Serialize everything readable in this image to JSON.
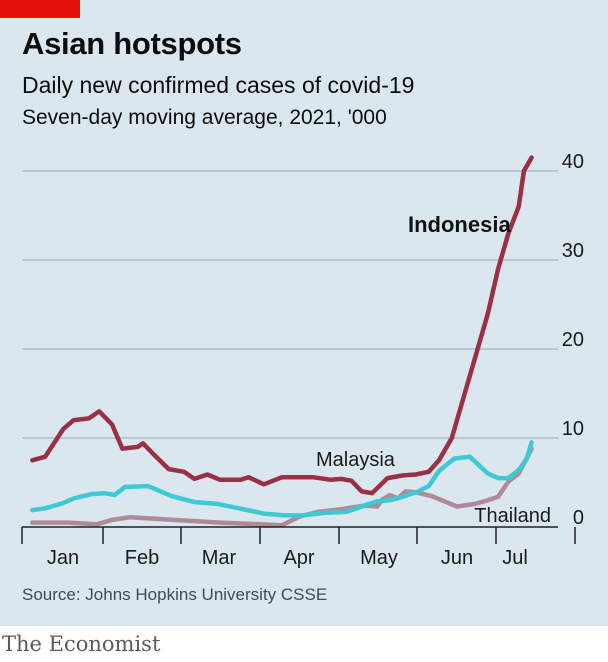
{
  "header": {
    "title": "Asian hotspots",
    "subtitle": "Daily new confirmed cases of covid-19",
    "note": "Seven-day moving average, 2021, '000"
  },
  "source": "Source: Johns Hopkins University CSSE",
  "footer": "The Economist",
  "colors": {
    "background": "#dbe7ee",
    "brand_red": "#e3120b",
    "indonesia": "#9a2f45",
    "malaysia": "#3ec9d4",
    "thailand": "#b08b97",
    "grid": "#a9b6bf",
    "axis": "#202020"
  },
  "chart_data": {
    "type": "line",
    "title": "Daily new confirmed cases of covid-19",
    "xlabel": "",
    "ylabel": "",
    "ylim": [
      0,
      40
    ],
    "xlim": [
      "2021-01-01",
      "2021-07-31"
    ],
    "y_ticks": [
      0,
      10,
      20,
      30,
      40
    ],
    "y_tick_labels": [
      "0",
      "10",
      "20",
      "30",
      "40"
    ],
    "x_ticks": [
      "Jan",
      "Feb",
      "Mar",
      "Apr",
      "May",
      "Jun",
      "Jul"
    ],
    "grid": true,
    "series": [
      {
        "name": "Indonesia",
        "color": "#9a2f45",
        "x": [
          "2021-01-01",
          "2021-01-06",
          "2021-01-13",
          "2021-01-17",
          "2021-01-23",
          "2021-01-27",
          "2021-02-01",
          "2021-02-05",
          "2021-02-11",
          "2021-02-13",
          "2021-02-17",
          "2021-02-23",
          "2021-03-01",
          "2021-03-05",
          "2021-03-10",
          "2021-03-15",
          "2021-03-23",
          "2021-03-26",
          "2021-04-01",
          "2021-04-08",
          "2021-04-20",
          "2021-04-27",
          "2021-05-01",
          "2021-05-05",
          "2021-05-09",
          "2021-05-13",
          "2021-05-19",
          "2021-05-25",
          "2021-05-30",
          "2021-06-04",
          "2021-06-08",
          "2021-06-13",
          "2021-06-18",
          "2021-06-23",
          "2021-06-27",
          "2021-07-01",
          "2021-07-05",
          "2021-07-09",
          "2021-07-11",
          "2021-07-14"
        ],
        "y": [
          7.5,
          7.9,
          11.0,
          12.0,
          12.2,
          13.0,
          11.5,
          8.8,
          9.0,
          9.4,
          8.2,
          6.5,
          6.2,
          5.4,
          5.9,
          5.3,
          5.3,
          5.6,
          4.8,
          5.6,
          5.6,
          5.3,
          5.4,
          5.2,
          4.0,
          3.8,
          5.5,
          5.8,
          5.9,
          6.2,
          7.5,
          10.0,
          15.0,
          20.0,
          24.0,
          29.0,
          33.0,
          36.0,
          40.0,
          41.5
        ]
      },
      {
        "name": "Malaysia",
        "color": "#3ec9d4",
        "x": [
          "2021-01-01",
          "2021-01-06",
          "2021-01-13",
          "2021-01-17",
          "2021-01-24",
          "2021-01-29",
          "2021-02-02",
          "2021-02-06",
          "2021-02-15",
          "2021-02-24",
          "2021-03-05",
          "2021-03-14",
          "2021-03-24",
          "2021-04-01",
          "2021-04-09",
          "2021-04-16",
          "2021-04-25",
          "2021-05-03",
          "2021-05-09",
          "2021-05-15",
          "2021-05-20",
          "2021-05-25",
          "2021-05-31",
          "2021-06-04",
          "2021-06-08",
          "2021-06-14",
          "2021-06-20",
          "2021-06-27",
          "2021-07-01",
          "2021-07-05",
          "2021-07-09",
          "2021-07-12",
          "2021-07-14"
        ],
        "y": [
          1.9,
          2.1,
          2.7,
          3.2,
          3.7,
          3.8,
          3.6,
          4.5,
          4.6,
          3.5,
          2.8,
          2.6,
          2.0,
          1.5,
          1.3,
          1.3,
          1.6,
          1.7,
          2.3,
          2.9,
          3.0,
          3.4,
          4.0,
          4.6,
          6.3,
          7.7,
          7.9,
          6.0,
          5.5,
          5.5,
          6.4,
          7.6,
          9.5
        ]
      },
      {
        "name": "Thailand",
        "color": "#b08b97",
        "x": [
          "2021-01-01",
          "2021-01-15",
          "2021-01-26",
          "2021-02-01",
          "2021-02-08",
          "2021-03-15",
          "2021-04-08",
          "2021-04-15",
          "2021-04-22",
          "2021-05-01",
          "2021-05-10",
          "2021-05-15",
          "2021-05-17",
          "2021-05-20",
          "2021-05-23",
          "2021-05-26",
          "2021-05-30",
          "2021-06-05",
          "2021-06-15",
          "2021-06-22",
          "2021-06-27",
          "2021-07-01",
          "2021-07-05",
          "2021-07-09",
          "2021-07-14"
        ],
        "y": [
          0.5,
          0.5,
          0.3,
          0.8,
          1.1,
          0.5,
          0.2,
          1.2,
          1.7,
          2.0,
          2.4,
          2.3,
          3.1,
          3.6,
          3.2,
          4.0,
          3.9,
          3.5,
          2.3,
          2.6,
          3.0,
          3.4,
          5.1,
          6.0,
          8.8
        ]
      }
    ],
    "annotations": [
      "Indonesia",
      "Malaysia",
      "Thailand"
    ]
  }
}
